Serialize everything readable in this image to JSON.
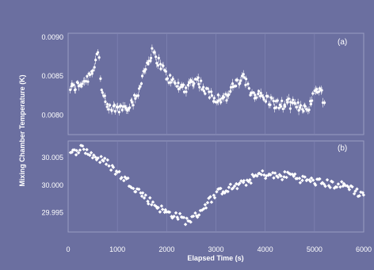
{
  "colors": {
    "background": "#6b6fa0",
    "marker": "#ffffff",
    "panel_border": "#9a9dc2",
    "grid": "#8185b4"
  },
  "chart_data": [
    {
      "type": "scatter",
      "panel_label": "(a)",
      "xlabel": "Elapsed Time (s)",
      "ylabel": "Mixing Chamber Temperature (K)",
      "xlim": [
        0,
        6000
      ],
      "ylim": [
        0.00775,
        0.00905
      ],
      "x_ticks": [
        0,
        1000,
        2000,
        3000,
        4000,
        5000,
        6000
      ],
      "y_ticks": [
        "0.0090",
        "0.0085",
        "0.0080"
      ],
      "y_tick_values": [
        0.009,
        0.0085,
        0.008
      ],
      "error_bars": true,
      "grid": true,
      "keypoints": [
        [
          100,
          0.00835
        ],
        [
          250,
          0.0084
        ],
        [
          400,
          0.00848
        ],
        [
          520,
          0.00862
        ],
        [
          580,
          0.00875
        ],
        [
          620,
          0.00885
        ],
        [
          680,
          0.0083
        ],
        [
          800,
          0.00808
        ],
        [
          1000,
          0.00808
        ],
        [
          1200,
          0.00812
        ],
        [
          1400,
          0.00822
        ],
        [
          1500,
          0.0085
        ],
        [
          1700,
          0.0088
        ],
        [
          1850,
          0.00868
        ],
        [
          2000,
          0.0085
        ],
        [
          2200,
          0.00838
        ],
        [
          2400,
          0.00835
        ],
        [
          2600,
          0.00848
        ],
        [
          2800,
          0.0083
        ],
        [
          3000,
          0.00822
        ],
        [
          3200,
          0.00822
        ],
        [
          3400,
          0.0084
        ],
        [
          3550,
          0.00848
        ],
        [
          3700,
          0.0083
        ],
        [
          3900,
          0.00825
        ],
        [
          4100,
          0.00818
        ],
        [
          4300,
          0.00812
        ],
        [
          4500,
          0.00815
        ],
        [
          4700,
          0.0081
        ],
        [
          4900,
          0.00812
        ],
        [
          5050,
          0.00835
        ],
        [
          5150,
          0.0083
        ],
        [
          5200,
          0.00812
        ]
      ]
    },
    {
      "type": "scatter",
      "panel_label": "(b)",
      "xlabel": "Elapsed Time (s)",
      "ylabel": "",
      "xlim": [
        0,
        6000
      ],
      "ylim": [
        29.9915,
        30.008
      ],
      "x_ticks": [
        0,
        1000,
        2000,
        3000,
        4000,
        5000,
        6000
      ],
      "y_ticks": [
        "30.005",
        "30.000",
        "29.995"
      ],
      "y_tick_values": [
        30.005,
        30.0,
        29.995
      ],
      "error_bars": false,
      "grid": true,
      "keypoints": [
        [
          0,
          30.005
        ],
        [
          100,
          30.0058
        ],
        [
          250,
          30.0068
        ],
        [
          400,
          30.006
        ],
        [
          600,
          30.0048
        ],
        [
          800,
          30.004
        ],
        [
          1000,
          30.0022
        ],
        [
          1200,
          30.0008
        ],
        [
          1400,
          29.9992
        ],
        [
          1600,
          29.9975
        ],
        [
          1800,
          29.9962
        ],
        [
          2000,
          29.995
        ],
        [
          2200,
          29.9945
        ],
        [
          2400,
          29.9935
        ],
        [
          2550,
          29.994
        ],
        [
          2700,
          29.9955
        ],
        [
          2900,
          29.9975
        ],
        [
          3100,
          29.999
        ],
        [
          3300,
          29.9995
        ],
        [
          3500,
          30.0
        ],
        [
          3700,
          30.001
        ],
        [
          3900,
          30.002
        ],
        [
          4100,
          30.0018
        ],
        [
          4300,
          30.0015
        ],
        [
          4500,
          30.002
        ],
        [
          4700,
          30.0012
        ],
        [
          4900,
          30.0008
        ],
        [
          5100,
          30.0005
        ],
        [
          5300,
          30.0002
        ],
        [
          5500,
          30.0
        ],
        [
          5700,
          29.9998
        ],
        [
          5900,
          29.9985
        ],
        [
          6000,
          29.9985
        ]
      ]
    }
  ]
}
